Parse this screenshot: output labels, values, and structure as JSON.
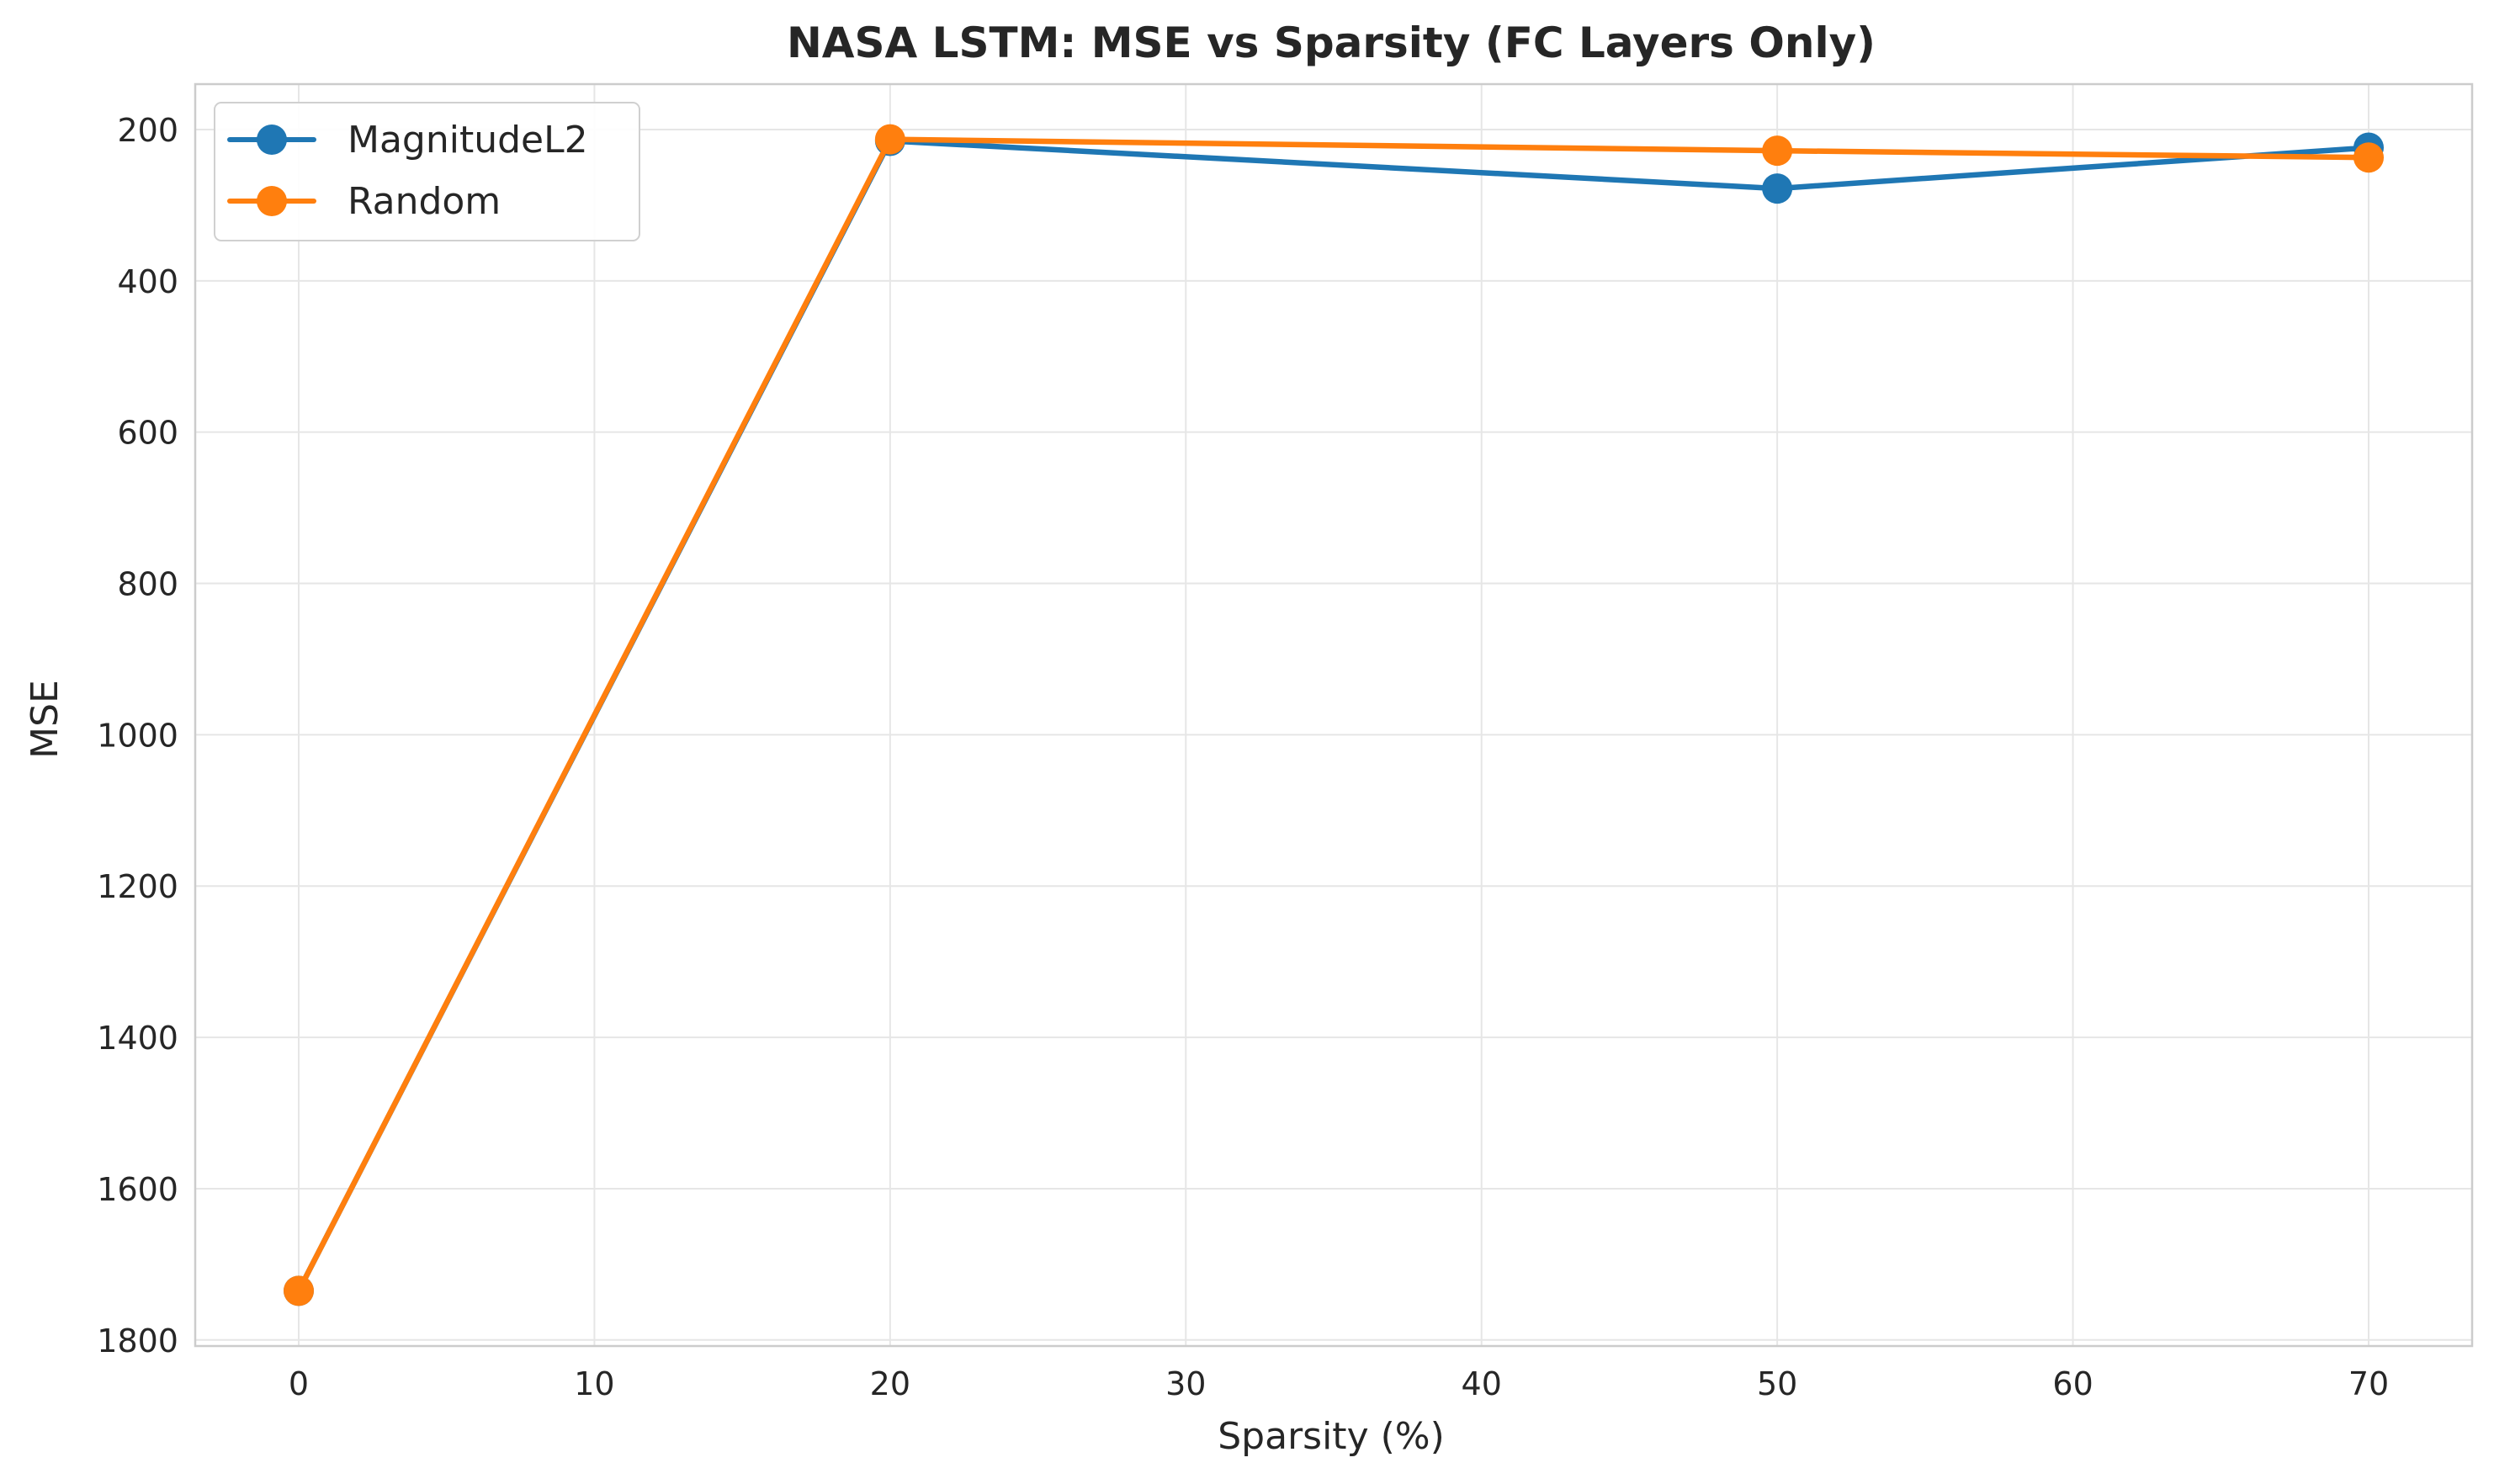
{
  "chart_data": {
    "type": "line",
    "title": "NASA LSTM: MSE vs Sparsity (FC Layers Only)",
    "xlabel": "Sparsity (%)",
    "ylabel": "MSE",
    "x": [
      0,
      20,
      50,
      70
    ],
    "series": [
      {
        "name": "MagnitudeL2",
        "color": "#1f77b4",
        "values": [
          1735,
          215,
          278,
          224
        ]
      },
      {
        "name": "Random",
        "color": "#ff7f0e",
        "values": [
          1735,
          213,
          228,
          237
        ]
      }
    ],
    "xlim": [
      -3.5,
      73.5
    ],
    "ylim": [
      1808,
      140
    ],
    "y_inverted": true,
    "xticks": [
      0,
      10,
      20,
      30,
      40,
      50,
      60,
      70
    ],
    "yticks": [
      200,
      400,
      600,
      800,
      1000,
      1200,
      1400,
      1600,
      1800
    ],
    "grid": true,
    "legend_position": "top-left"
  }
}
